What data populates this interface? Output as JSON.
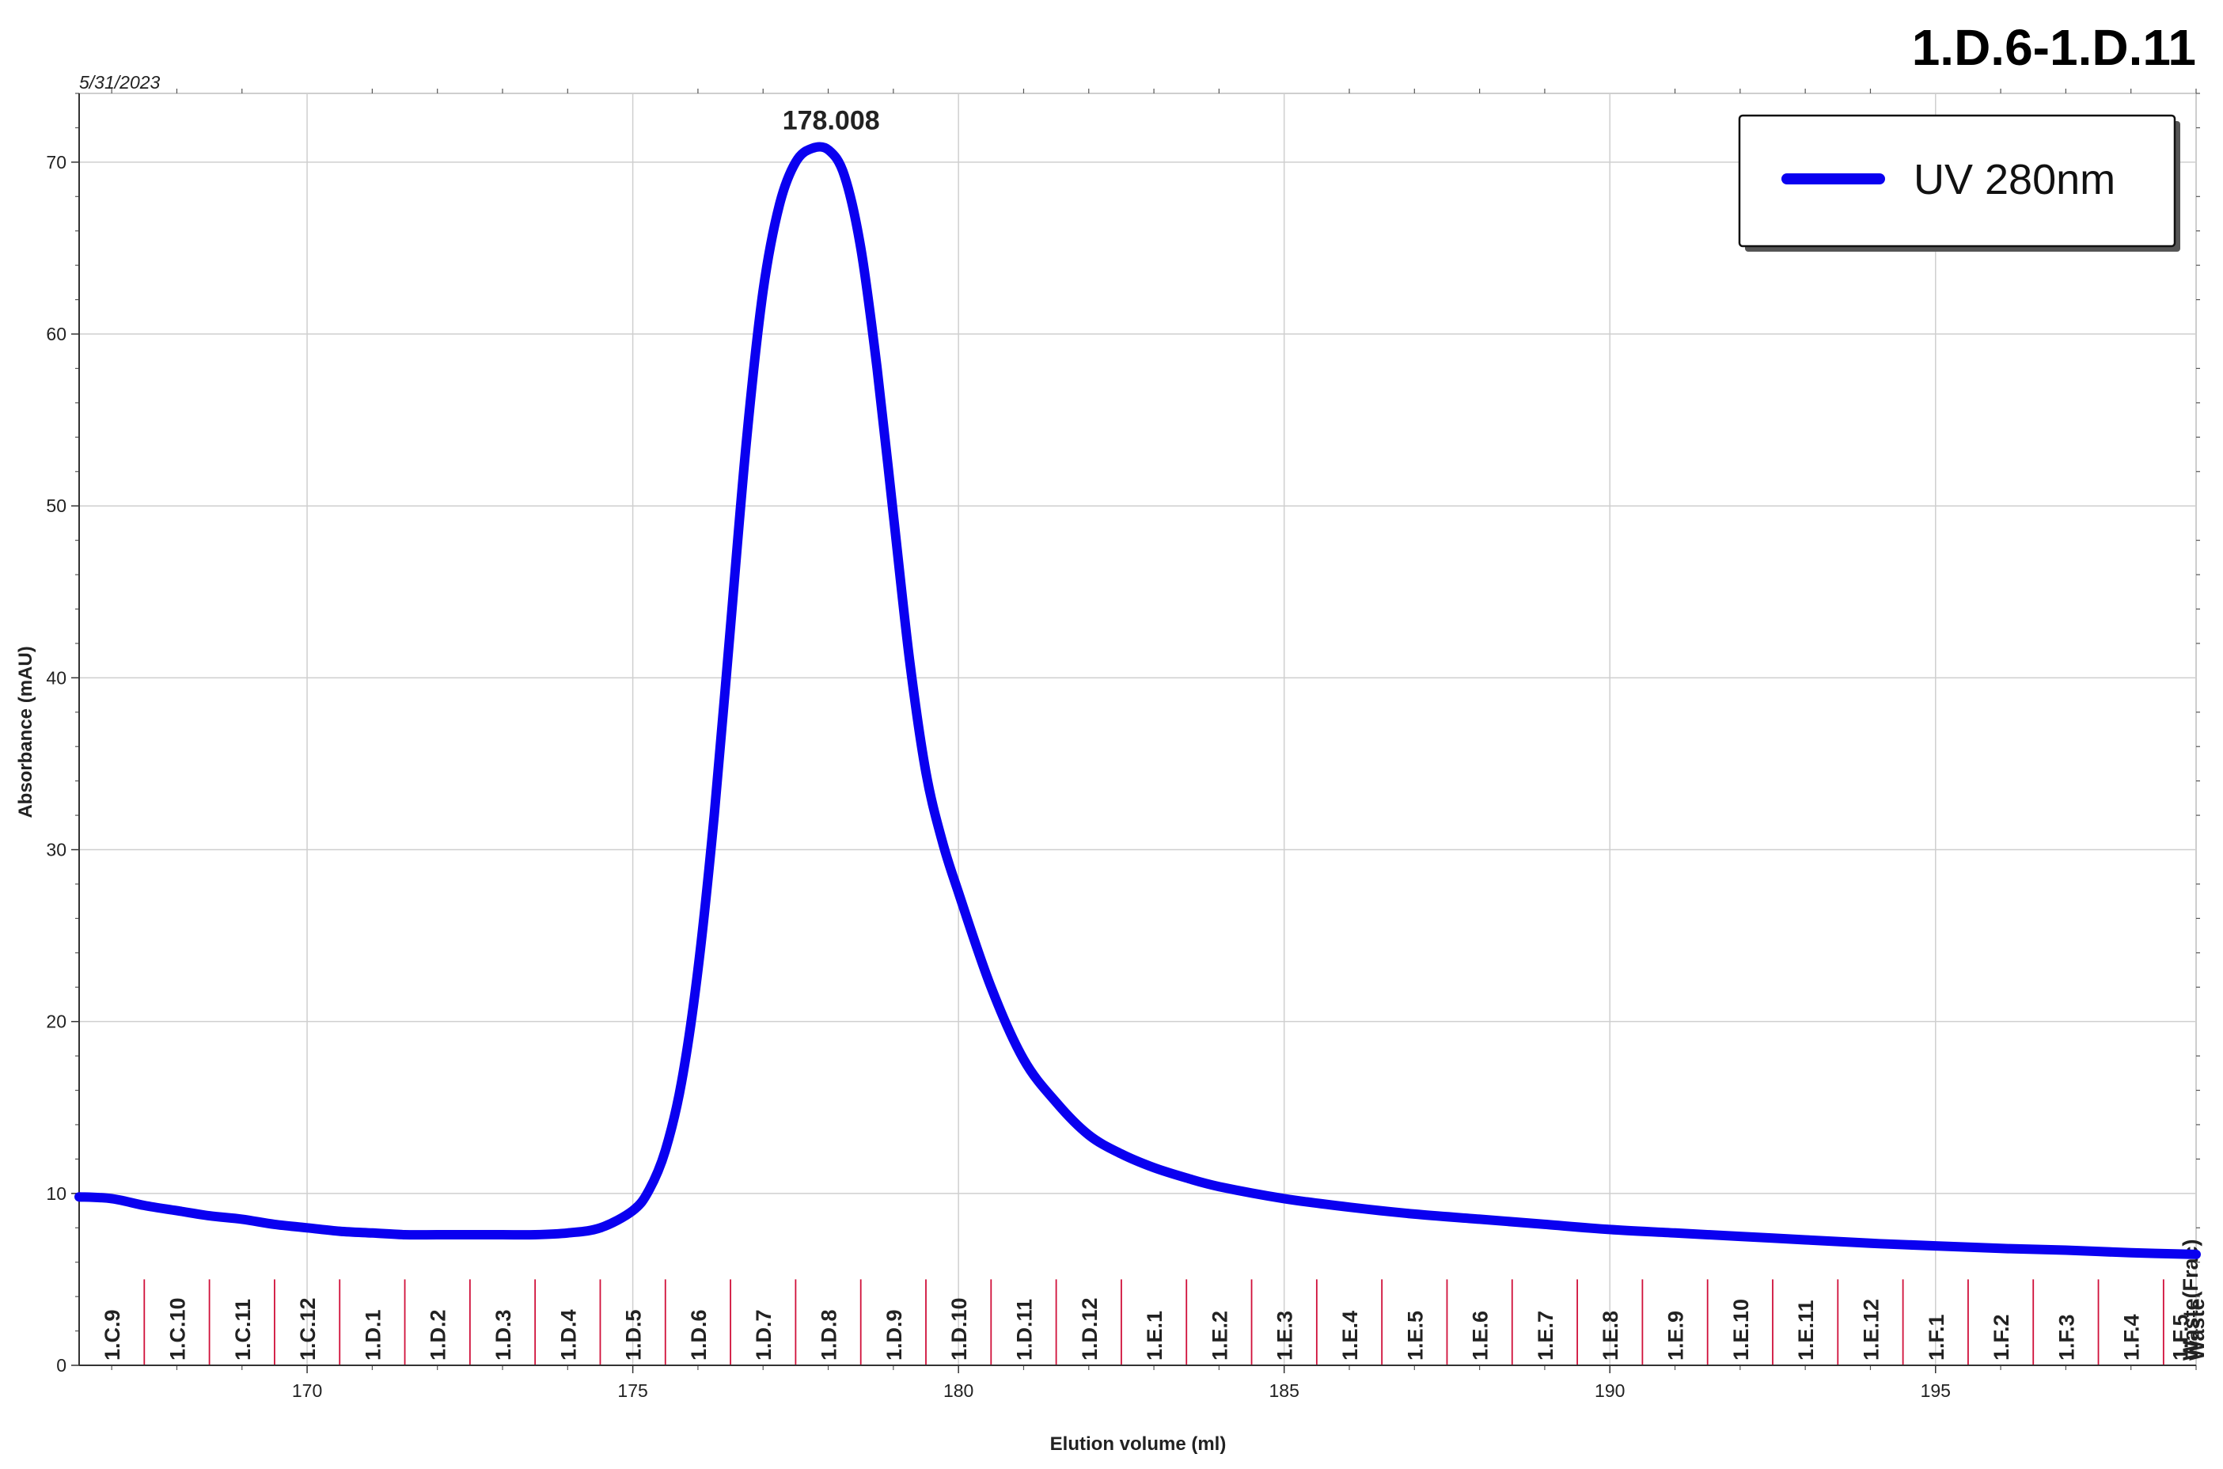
{
  "header": {
    "title": "1.D.6-1.D.11",
    "date": "5/31/2023"
  },
  "chart_data": {
    "type": "line",
    "title": "1.D.6-1.D.11",
    "xlabel": "Elution volume (ml)",
    "ylabel": "Absorbance (mAU)",
    "xlim": [
      166.5,
      199
    ],
    "ylim": [
      0,
      74
    ],
    "x_ticks": [
      170,
      175,
      180,
      185,
      190,
      195
    ],
    "y_ticks": [
      0,
      10,
      20,
      30,
      40,
      50,
      60,
      70
    ],
    "grid": true,
    "legend_position": "top-right",
    "colors": {
      "series": "#0a00f0",
      "fraction_marker": "#d0103a",
      "grid": "#cfcfcf"
    },
    "series": [
      {
        "name": "UV 280nm",
        "x": [
          166.5,
          167.0,
          167.5,
          168.0,
          168.5,
          169.0,
          169.5,
          170.0,
          170.5,
          171.0,
          171.5,
          172.0,
          172.5,
          173.0,
          173.5,
          174.0,
          174.5,
          175.0,
          175.25,
          175.5,
          175.75,
          176.0,
          176.25,
          176.5,
          176.75,
          177.0,
          177.25,
          177.5,
          177.75,
          178.008,
          178.25,
          178.5,
          178.75,
          179.0,
          179.25,
          179.5,
          179.75,
          180.0,
          180.5,
          181.0,
          181.5,
          182.0,
          182.5,
          183.0,
          183.5,
          184.0,
          185.0,
          186.0,
          187.0,
          188.0,
          189.0,
          190.0,
          191.0,
          192.0,
          193.0,
          194.0,
          195.0,
          196.0,
          197.0,
          198.0,
          199.0
        ],
        "y": [
          9.8,
          9.7,
          9.3,
          9.0,
          8.7,
          8.5,
          8.2,
          8.0,
          7.8,
          7.7,
          7.6,
          7.6,
          7.6,
          7.6,
          7.6,
          7.7,
          8.0,
          9.0,
          10.2,
          12.5,
          16.5,
          23.0,
          32.0,
          43.0,
          54.0,
          62.5,
          67.5,
          70.0,
          70.8,
          70.7,
          69.2,
          65.0,
          58.0,
          49.5,
          41.0,
          34.5,
          30.5,
          27.5,
          22.0,
          17.8,
          15.3,
          13.4,
          12.3,
          11.5,
          10.9,
          10.4,
          9.7,
          9.2,
          8.8,
          8.5,
          8.2,
          7.9,
          7.7,
          7.5,
          7.3,
          7.1,
          6.95,
          6.8,
          6.7,
          6.55,
          6.45
        ]
      }
    ],
    "annotations": [
      {
        "text": "178.008",
        "x": 178.008,
        "y": 70.8
      }
    ],
    "fractions": {
      "boundaries": [
        167.5,
        168.5,
        169.5,
        170.5,
        171.5,
        172.5,
        173.5,
        174.5,
        175.5,
        176.5,
        177.5,
        178.5,
        179.5,
        180.5,
        181.5,
        182.5,
        183.5,
        184.5,
        185.5,
        186.5,
        187.5,
        188.5,
        189.5,
        190.5,
        191.5,
        192.5,
        193.5,
        194.5,
        195.5,
        196.5,
        197.5,
        198.5
      ],
      "labels": [
        {
          "text": "1.C.9",
          "x": 167.0
        },
        {
          "text": "1.C.10",
          "x": 168.0
        },
        {
          "text": "1.C.11",
          "x": 169.0
        },
        {
          "text": "1.C.12",
          "x": 170.0
        },
        {
          "text": "1.D.1",
          "x": 171.0
        },
        {
          "text": "1.D.2",
          "x": 172.0
        },
        {
          "text": "1.D.3",
          "x": 173.0
        },
        {
          "text": "1.D.4",
          "x": 174.0
        },
        {
          "text": "1.D.5",
          "x": 175.0
        },
        {
          "text": "1.D.6",
          "x": 176.0
        },
        {
          "text": "1.D.7",
          "x": 177.0
        },
        {
          "text": "1.D.8",
          "x": 178.0
        },
        {
          "text": "1.D.9",
          "x": 179.0
        },
        {
          "text": "1.D.10",
          "x": 180.0
        },
        {
          "text": "1.D.11",
          "x": 181.0
        },
        {
          "text": "1.D.12",
          "x": 182.0
        },
        {
          "text": "1.E.1",
          "x": 183.0
        },
        {
          "text": "1.E.2",
          "x": 184.0
        },
        {
          "text": "1.E.3",
          "x": 185.0
        },
        {
          "text": "1.E.4",
          "x": 186.0
        },
        {
          "text": "1.E.5",
          "x": 187.0
        },
        {
          "text": "1.E.6",
          "x": 188.0
        },
        {
          "text": "1.E.7",
          "x": 189.0
        },
        {
          "text": "1.E.8",
          "x": 190.0
        },
        {
          "text": "1.E.9",
          "x": 191.0
        },
        {
          "text": "1.E.10",
          "x": 192.0
        },
        {
          "text": "1.E.11",
          "x": 193.0
        },
        {
          "text": "1.E.12",
          "x": 194.0
        },
        {
          "text": "1.F.1",
          "x": 195.0
        },
        {
          "text": "1.F.2",
          "x": 196.0
        },
        {
          "text": "1.F.3",
          "x": 197.0
        },
        {
          "text": "1.F.4",
          "x": 198.0
        },
        {
          "text": "1.F.5",
          "x": 198.75
        },
        {
          "text": "Waste(Frac)",
          "x": 198.9
        },
        {
          "text": "Waste",
          "x": 199.0
        }
      ]
    }
  }
}
